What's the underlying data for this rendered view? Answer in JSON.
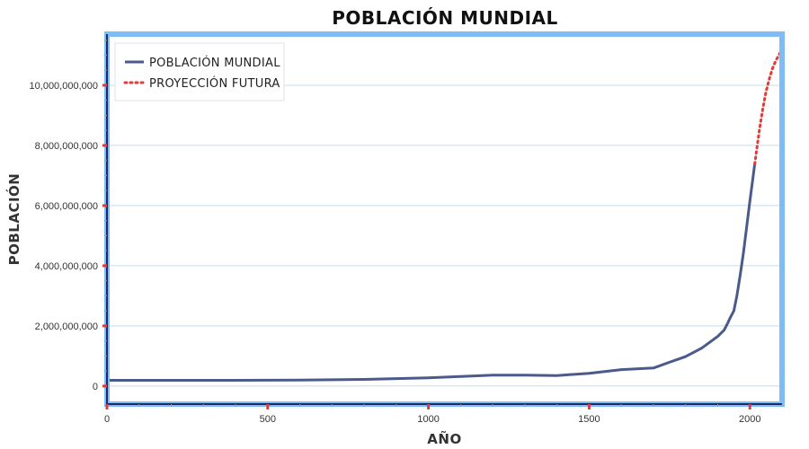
{
  "chart_data": {
    "type": "line",
    "title": "POBLACIÓN MUNDIAL",
    "xlabel": "AÑO",
    "ylabel": "POBLACIÓN",
    "xlim": [
      0,
      2100
    ],
    "ylim": [
      0,
      11700000000
    ],
    "x_ticks": [
      0,
      500,
      1000,
      1500,
      2000
    ],
    "x_tick_labels": [
      "0",
      "500",
      "1000",
      "1500",
      "2000"
    ],
    "y_ticks": [
      0,
      2000000000,
      4000000000,
      6000000000,
      8000000000,
      10000000000
    ],
    "y_tick_labels": [
      "0",
      "2,000,000,000",
      "4,000,000,000",
      "6,000,000,000",
      "8,000,000,000",
      "10,000,000,000"
    ],
    "grid": true,
    "legend_position": "top-left",
    "series": [
      {
        "name": "POBLACIÓN MUNDIAL",
        "color": "#4a5a8a",
        "style": "solid",
        "points": [
          [
            0,
            190000000
          ],
          [
            200,
            190000000
          ],
          [
            400,
            190000000
          ],
          [
            600,
            200000000
          ],
          [
            800,
            220000000
          ],
          [
            1000,
            275000000
          ],
          [
            1100,
            320000000
          ],
          [
            1200,
            360000000
          ],
          [
            1300,
            360000000
          ],
          [
            1400,
            350000000
          ],
          [
            1500,
            425000000
          ],
          [
            1600,
            545000000
          ],
          [
            1700,
            600000000
          ],
          [
            1750,
            790000000
          ],
          [
            1800,
            980000000
          ],
          [
            1850,
            1260000000
          ],
          [
            1900,
            1650000000
          ],
          [
            1920,
            1860000000
          ],
          [
            1930,
            2070000000
          ],
          [
            1940,
            2300000000
          ],
          [
            1950,
            2500000000
          ],
          [
            1960,
            3020000000
          ],
          [
            1970,
            3700000000
          ],
          [
            1980,
            4440000000
          ],
          [
            1990,
            5300000000
          ],
          [
            2000,
            6140000000
          ],
          [
            2010,
            6960000000
          ],
          [
            2015,
            7380000000
          ]
        ]
      },
      {
        "name": "PROYECCIÓN FUTURA",
        "color": "#e03c3c",
        "style": "dotted",
        "points": [
          [
            2015,
            7380000000
          ],
          [
            2030,
            8550000000
          ],
          [
            2040,
            9200000000
          ],
          [
            2050,
            9770000000
          ],
          [
            2060,
            10200000000
          ],
          [
            2070,
            10550000000
          ],
          [
            2080,
            10800000000
          ],
          [
            2090,
            11000000000
          ],
          [
            2100,
            11200000000
          ]
        ]
      }
    ]
  },
  "colors": {
    "plot_border": "#7dbcf5",
    "grid": "#c8dceb",
    "tick_mark": "#e03c3c"
  }
}
